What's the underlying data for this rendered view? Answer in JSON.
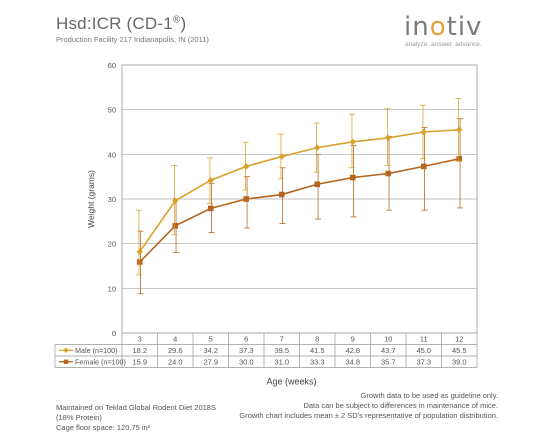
{
  "header": {
    "title": "Hsd:ICR (CD-1",
    "title_sup": "®",
    "title_close": ")",
    "subtitle": "Production Facility 217 Indianapolis, IN (2011)"
  },
  "logo": {
    "word": "inotiv",
    "tagline": "analyze. answer. advance.",
    "accent": "#e1a33a"
  },
  "chart_data": {
    "type": "line",
    "x": [
      3,
      4,
      5,
      6,
      7,
      8,
      9,
      10,
      11,
      12
    ],
    "xlabel": "Age (weeks)",
    "ylabel": "Weight (grams)",
    "ylim": [
      0,
      60
    ],
    "yticks": [
      0,
      10,
      20,
      30,
      40,
      50,
      60
    ],
    "grid": true,
    "legend": "table-below",
    "series": [
      {
        "name": "Male (n=100)",
        "color": "#d9a22b",
        "marker": "diamond",
        "values": [
          18.2,
          29.6,
          34.2,
          37.3,
          39.5,
          41.5,
          42.8,
          43.7,
          45.0,
          45.5
        ],
        "err_low": [
          13.0,
          22.0,
          29.0,
          32.0,
          34.5,
          36.0,
          37.0,
          37.5,
          39.0,
          38.5
        ],
        "err_high": [
          27.5,
          37.5,
          39.2,
          42.7,
          44.5,
          47.0,
          49.0,
          50.2,
          51.0,
          52.5
        ]
      },
      {
        "name": "Female (n=100)",
        "color": "#b5651d",
        "marker": "square",
        "values": [
          15.9,
          24.0,
          27.9,
          30.0,
          31.0,
          33.3,
          34.8,
          35.7,
          37.3,
          39.0
        ],
        "err_low": [
          8.8,
          18.0,
          22.5,
          23.5,
          24.5,
          25.5,
          26.0,
          27.5,
          27.5,
          28.0
        ],
        "err_high": [
          22.8,
          30.0,
          33.5,
          35.0,
          37.0,
          40.0,
          42.0,
          44.0,
          46.0,
          48.0
        ]
      }
    ],
    "table": {
      "male_row": [
        "18.2",
        "29.6",
        "34.2",
        "37.3",
        "39.5",
        "41.5",
        "42.8",
        "43.7",
        "45.0",
        "45.5"
      ],
      "female_row": [
        "15.9",
        "24.0",
        "27.9",
        "30.0",
        "31.0",
        "33.3",
        "34.8",
        "35.7",
        "37.3",
        "39.0"
      ]
    }
  },
  "footer": {
    "left": [
      "Maintained on Teklad Global Rodent Diet 2018S",
      "(18% Protein)",
      "Cage floor space: 120.75 in²"
    ],
    "right": [
      "Growth data to be used as guideline only.",
      "Data can be subject to differences in maintenance of mice.",
      "Growth chart includes mean ± 2 SD's representative of population distribution."
    ]
  }
}
